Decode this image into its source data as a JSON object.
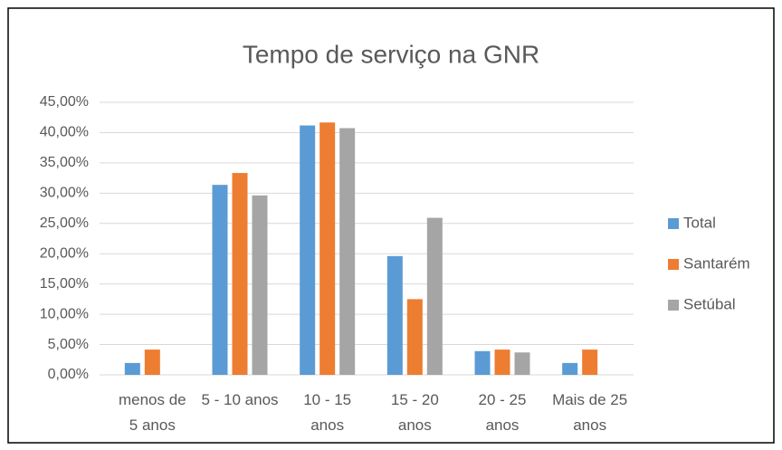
{
  "chart_data": {
    "type": "bar",
    "title": "Tempo de serviço na GNR",
    "categories": [
      "menos de 5 anos",
      "5 - 10 anos",
      "10 - 15 anos",
      "15 - 20 anos",
      "20 - 25 anos",
      "Mais de 25 anos"
    ],
    "series": [
      {
        "name": "Total",
        "color": "#5b9bd5",
        "values": [
          1.96,
          31.37,
          41.18,
          19.61,
          3.92,
          1.96
        ]
      },
      {
        "name": "Santarém",
        "color": "#ed7d31",
        "values": [
          4.17,
          33.33,
          41.67,
          12.5,
          4.17,
          4.17
        ]
      },
      {
        "name": "Setúbal",
        "color": "#a5a5a5",
        "values": [
          0,
          29.63,
          40.74,
          25.93,
          3.7,
          0
        ]
      }
    ],
    "ylim": [
      0,
      45
    ],
    "yticks": [
      {
        "value": 0,
        "label": "0,00%"
      },
      {
        "value": 5,
        "label": "5,00%"
      },
      {
        "value": 10,
        "label": "10,00%"
      },
      {
        "value": 15,
        "label": "15,00%"
      },
      {
        "value": 20,
        "label": "20,00%"
      },
      {
        "value": 25,
        "label": "25,00%"
      },
      {
        "value": 30,
        "label": "30,00%"
      },
      {
        "value": 35,
        "label": "35,00%"
      },
      {
        "value": 40,
        "label": "40,00%"
      },
      {
        "value": 45,
        "label": "45,00%"
      }
    ],
    "grid": true,
    "legend": "right"
  }
}
